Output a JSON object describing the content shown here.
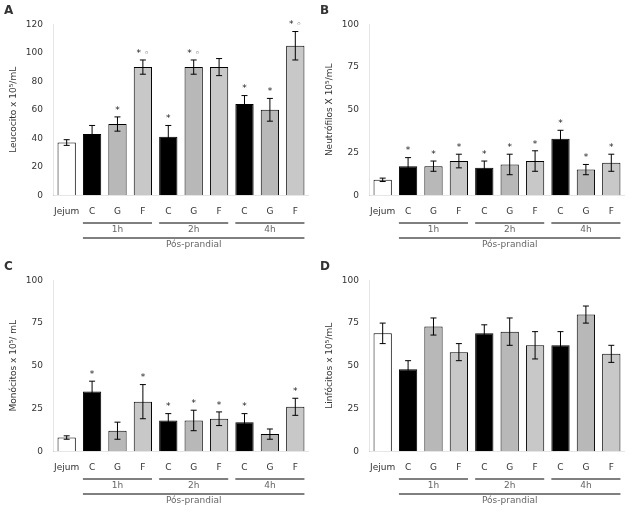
{
  "chart_data": [
    {
      "type": "bar",
      "title": "A",
      "ylabel": "Leucocito x 10⁵/mL",
      "categories": [
        "Jejum",
        "C",
        "G",
        "F",
        "C",
        "G",
        "F",
        "C",
        "G",
        "F"
      ],
      "values": [
        37,
        43,
        50,
        90,
        41,
        90,
        90,
        64,
        60,
        105
      ],
      "errors": [
        2,
        6,
        5,
        5,
        8,
        5,
        6,
        6,
        8,
        10
      ],
      "colors": [
        "#ffffff",
        "#000000",
        "#b8b8b8",
        "#c8c8c8",
        "#000000",
        "#b8b8b8",
        "#c8c8c8",
        "#000000",
        "#b8b8b8",
        "#c8c8c8"
      ],
      "annotations": [
        null,
        null,
        "*",
        "* ◦",
        "*",
        "* ◦",
        null,
        "*",
        "*",
        "* ◦"
      ],
      "groups": [
        null,
        "1h",
        "1h",
        "1h",
        "2h",
        "2h",
        "2h",
        "4h",
        "4h",
        "4h"
      ],
      "super_groups": [
        null,
        "Pós-prandial",
        "Pós-prandial",
        "Pós-prandial",
        "Pós-prandial",
        "Pós-prandial",
        "Pós-prandial",
        "Pós-prandial",
        "Pós-prandial",
        "Pós-prandial"
      ],
      "ylim": [
        0,
        120
      ],
      "yticks": [
        0,
        20,
        40,
        60,
        80,
        100,
        120
      ],
      "grid": false
    },
    {
      "type": "bar",
      "title": "B",
      "ylabel": "Neutrófilos X 10⁵/mL",
      "categories": [
        "Jejum",
        "C",
        "G",
        "F",
        "C",
        "G",
        "F",
        "C",
        "G",
        "F"
      ],
      "values": [
        9,
        17,
        17,
        20,
        16,
        18,
        20,
        33,
        15,
        19
      ],
      "errors": [
        1,
        5,
        3,
        4,
        4,
        6,
        6,
        5,
        3,
        5
      ],
      "colors": [
        "#ffffff",
        "#000000",
        "#b8b8b8",
        "#c8c8c8",
        "#000000",
        "#b8b8b8",
        "#c8c8c8",
        "#000000",
        "#b8b8b8",
        "#c8c8c8"
      ],
      "annotations": [
        null,
        "*",
        "*",
        "*",
        "*",
        "*",
        "*",
        "*",
        "*",
        "*"
      ],
      "groups": [
        null,
        "1h",
        "1h",
        "1h",
        "2h",
        "2h",
        "2h",
        "4h",
        "4h",
        "4h"
      ],
      "super_groups": [
        null,
        "Pós-prandial",
        "Pós-prandial",
        "Pós-prandial",
        "Pós-prandial",
        "Pós-prandial",
        "Pós-prandial",
        "Pós-prandial",
        "Pós-prandial",
        "Pós-prandial"
      ],
      "ylim": [
        0,
        100
      ],
      "yticks": [
        0,
        25,
        50,
        75,
        100
      ],
      "grid": false
    },
    {
      "type": "bar",
      "title": "C",
      "ylabel": "Monócitos x 10⁵/ mL",
      "categories": [
        "Jejum",
        "C",
        "G",
        "F",
        "C",
        "G",
        "F",
        "C",
        "G",
        "F"
      ],
      "values": [
        8,
        35,
        12,
        29,
        18,
        18,
        19,
        17,
        10,
        26
      ],
      "errors": [
        1,
        6,
        5,
        10,
        4,
        6,
        4,
        5,
        3,
        5
      ],
      "colors": [
        "#ffffff",
        "#000000",
        "#b8b8b8",
        "#c8c8c8",
        "#000000",
        "#b8b8b8",
        "#c8c8c8",
        "#000000",
        "#b8b8b8",
        "#c8c8c8"
      ],
      "annotations": [
        null,
        "*",
        null,
        "*",
        "*",
        "*",
        "*",
        "*",
        null,
        "*"
      ],
      "groups": [
        null,
        "1h",
        "1h",
        "1h",
        "2h",
        "2h",
        "2h",
        "4h",
        "4h",
        "4h"
      ],
      "super_groups": [
        null,
        "Pós-prandial",
        "Pós-prandial",
        "Pós-prandial",
        "Pós-prandial",
        "Pós-prandial",
        "Pós-prandial",
        "Pós-prandial",
        "Pós-prandial",
        "Pós-prandial"
      ],
      "ylim": [
        0,
        100
      ],
      "yticks": [
        0,
        25,
        50,
        75,
        100
      ],
      "grid": false
    },
    {
      "type": "bar",
      "title": "D",
      "ylabel": "Linfócitos x 10⁵/mL",
      "categories": [
        "Jejum",
        "C",
        "G",
        "F",
        "C",
        "G",
        "F",
        "C",
        "G",
        "F"
      ],
      "values": [
        69,
        48,
        73,
        58,
        69,
        70,
        62,
        62,
        80,
        57
      ],
      "errors": [
        6,
        5,
        5,
        5,
        5,
        8,
        8,
        8,
        5,
        5
      ],
      "colors": [
        "#ffffff",
        "#000000",
        "#b8b8b8",
        "#c8c8c8",
        "#000000",
        "#b8b8b8",
        "#c8c8c8",
        "#000000",
        "#b8b8b8",
        "#c8c8c8"
      ],
      "groups": [
        null,
        "1h",
        "1h",
        "1h",
        "2h",
        "2h",
        "2h",
        "4h",
        "4h",
        "4h"
      ],
      "super_groups": [
        null,
        "Pós-prandial",
        "Pós-prandial",
        "Pós-prandial",
        "Pós-prandial",
        "Pós-prandial",
        "Pós-prandial",
        "Pós-prandial",
        "Pós-prandial",
        "Pós-prandial"
      ],
      "ylim": [
        0,
        100
      ],
      "yticks": [
        0,
        25,
        50,
        75,
        100
      ],
      "grid": false
    }
  ]
}
